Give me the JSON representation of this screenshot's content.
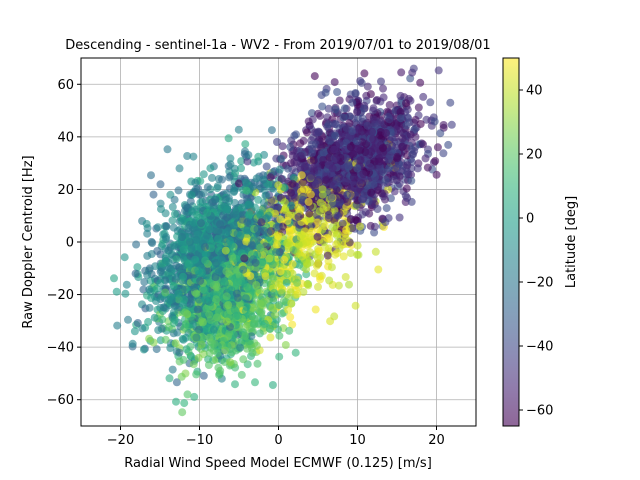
{
  "chart_data": {
    "type": "scatter",
    "title": "Descending - sentinel-1a - WV2 - From 2019/07/01 to 2019/08/01",
    "xlabel": "Radial Wind Speed Model ECMWF (0.125) [m/s]",
    "ylabel": "Raw Doppler Centroid [Hz]",
    "xlim": [
      -25,
      25
    ],
    "ylim": [
      -70,
      70
    ],
    "xticks": [
      -20,
      -10,
      0,
      10,
      20
    ],
    "yticks": [
      -60,
      -40,
      -20,
      0,
      20,
      40,
      60
    ],
    "grid": true,
    "colorbar": {
      "label": "Latitude [deg]",
      "range": [
        -65,
        50
      ],
      "ticks": [
        -60,
        -40,
        -20,
        0,
        20,
        40
      ],
      "colormap": "viridis",
      "alpha": 0.6
    },
    "clusters": [
      {
        "latitude_range": [
          -65,
          -35
        ],
        "x_mean": 9,
        "y_mean": 30,
        "x_std": 4.5,
        "y_std": 11,
        "count": 1500
      },
      {
        "latitude_range": [
          -30,
          5
        ],
        "x_mean": -8,
        "y_mean": -5,
        "x_std": 4,
        "y_std": 14,
        "count": 1600
      },
      {
        "latitude_range": [
          5,
          30
        ],
        "x_mean": -6,
        "y_mean": -22,
        "x_std": 3.5,
        "y_std": 12,
        "count": 900
      },
      {
        "latitude_range": [
          35,
          50
        ],
        "x_mean": 3,
        "y_mean": 2,
        "x_std": 4,
        "y_std": 12,
        "count": 500
      }
    ]
  }
}
